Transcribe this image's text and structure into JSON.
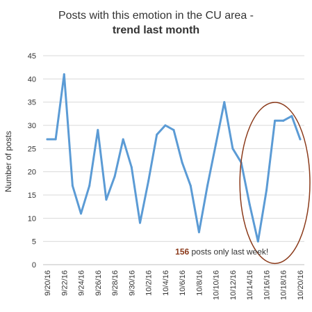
{
  "chart_data": {
    "type": "line",
    "title": "Posts with this emotion in the CU area -",
    "subtitle": "trend last month",
    "xlabel": "",
    "ylabel": "Number of posts",
    "ylim": [
      0,
      45
    ],
    "yticks": [
      0,
      5,
      10,
      15,
      20,
      25,
      30,
      35,
      40,
      45
    ],
    "grid": true,
    "x": [
      "9/20/16",
      "9/21/16",
      "9/22/16",
      "9/23/16",
      "9/24/16",
      "9/25/16",
      "9/26/16",
      "9/27/16",
      "9/28/16",
      "9/29/16",
      "9/30/16",
      "10/1/16",
      "10/2/16",
      "10/3/16",
      "10/4/16",
      "10/5/16",
      "10/6/16",
      "10/7/16",
      "10/8/16",
      "10/9/16",
      "10/10/16",
      "10/11/16",
      "10/12/16",
      "10/13/16",
      "10/14/16",
      "10/15/16",
      "10/16/16",
      "10/17/16",
      "10/18/16",
      "10/19/16",
      "10/20/16"
    ],
    "xtick_labels": [
      "9/20/16",
      "9/22/16",
      "9/24/16",
      "9/26/16",
      "9/28/16",
      "9/30/16",
      "10/2/16",
      "10/4/16",
      "10/6/16",
      "10/8/16",
      "10/10/16",
      "10/12/16",
      "10/14/16",
      "10/16/16",
      "10/18/16",
      "10/20/16"
    ],
    "series": [
      {
        "values": [
          27,
          27,
          41,
          17,
          11,
          17,
          29,
          14,
          19,
          27,
          21,
          9,
          18,
          28,
          30,
          29,
          22,
          17,
          7,
          17,
          26,
          35,
          25,
          22,
          13,
          5,
          16,
          31,
          31,
          32,
          27
        ],
        "color": "#5b9bd5"
      }
    ],
    "annotation": {
      "highlight": "156",
      "text": " posts only last week!",
      "highlight_color": "#8b3a1a",
      "circle_color": "#8b3a1a",
      "circle_range": [
        "10/14/16",
        "10/20/16"
      ]
    },
    "colors": {
      "grid": "#d9d9d9",
      "text": "#333333"
    }
  }
}
